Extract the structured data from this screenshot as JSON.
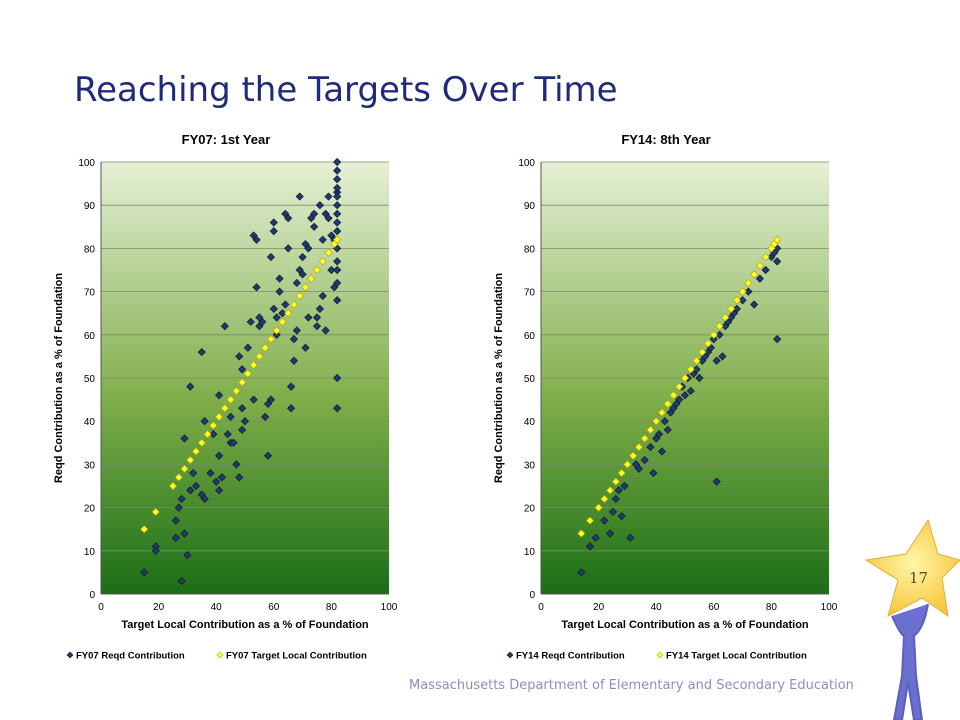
{
  "slide": {
    "title": "Reaching the Targets Over Time",
    "footer": "Massachusetts Department of Elementary and Secondary Education",
    "page_number": "17"
  },
  "colors": {
    "title": "#1f2b7a",
    "reqd_marker": "#1f3a6b",
    "target_marker": "#ffff33",
    "plot_top": "#e6f0d6",
    "plot_bottom": "#1b6e16"
  },
  "chart_data": [
    {
      "type": "scatter",
      "title": "FY07: 1st Year",
      "xlabel": "Target Local Contribution as a % of Foundation",
      "ylabel": "Reqd Contribution as a % of Foundation",
      "xlim": [
        0,
        100
      ],
      "ylim": [
        0,
        100
      ],
      "xticks": [
        0,
        20,
        40,
        60,
        80,
        100
      ],
      "yticks": [
        0,
        10,
        20,
        30,
        40,
        50,
        60,
        70,
        80,
        90,
        100
      ],
      "grid": "horizontal",
      "legend_position": "bottom",
      "series": [
        {
          "name": "FY07 Reqd Contribution",
          "marker": "diamond",
          "color": "#1f3a6b",
          "points": [
            [
              15,
              5
            ],
            [
              19,
              11
            ],
            [
              19,
              10
            ],
            [
              26,
              13
            ],
            [
              28,
              3
            ],
            [
              29,
              14
            ],
            [
              30,
              9
            ],
            [
              26,
              17
            ],
            [
              27,
              20
            ],
            [
              28,
              22
            ],
            [
              31,
              24
            ],
            [
              29,
              36
            ],
            [
              31,
              48
            ],
            [
              33,
              25
            ],
            [
              32,
              28
            ],
            [
              35,
              23
            ],
            [
              36,
              22
            ],
            [
              36,
              40
            ],
            [
              35,
              56
            ],
            [
              38,
              28
            ],
            [
              40,
              26
            ],
            [
              39,
              37
            ],
            [
              41,
              24
            ],
            [
              41,
              32
            ],
            [
              42,
              27
            ],
            [
              43,
              62
            ],
            [
              41,
              46
            ],
            [
              44,
              37
            ],
            [
              45,
              41
            ],
            [
              45,
              35
            ],
            [
              46,
              35
            ],
            [
              47,
              30
            ],
            [
              48,
              27
            ],
            [
              49,
              43
            ],
            [
              49,
              38
            ],
            [
              50,
              40
            ],
            [
              49,
              52
            ],
            [
              48,
              55
            ],
            [
              51,
              57
            ],
            [
              52,
              63
            ],
            [
              53,
              45
            ],
            [
              53,
              83
            ],
            [
              54,
              82
            ],
            [
              54,
              71
            ],
            [
              55,
              62
            ],
            [
              55,
              64
            ],
            [
              56,
              63
            ],
            [
              57,
              41
            ],
            [
              58,
              32
            ],
            [
              58,
              44
            ],
            [
              59,
              45
            ],
            [
              59,
              78
            ],
            [
              60,
              86
            ],
            [
              60,
              84
            ],
            [
              60,
              66
            ],
            [
              61,
              60
            ],
            [
              61,
              64
            ],
            [
              62,
              70
            ],
            [
              62,
              73
            ],
            [
              63,
              65
            ],
            [
              64,
              67
            ],
            [
              64,
              88
            ],
            [
              65,
              87
            ],
            [
              65,
              80
            ],
            [
              66,
              43
            ],
            [
              66,
              48
            ],
            [
              67,
              54
            ],
            [
              67,
              59
            ],
            [
              68,
              61
            ],
            [
              68,
              72
            ],
            [
              69,
              75
            ],
            [
              69,
              92
            ],
            [
              70,
              78
            ],
            [
              70,
              74
            ],
            [
              71,
              81
            ],
            [
              71,
              57
            ],
            [
              72,
              64
            ],
            [
              72,
              80
            ],
            [
              73,
              87
            ],
            [
              74,
              85
            ],
            [
              74,
              88
            ],
            [
              75,
              62
            ],
            [
              75,
              64
            ],
            [
              76,
              66
            ],
            [
              76,
              90
            ],
            [
              77,
              82
            ],
            [
              77,
              69
            ],
            [
              78,
              61
            ],
            [
              78,
              88
            ],
            [
              79,
              87
            ],
            [
              79,
              92
            ],
            [
              80,
              75
            ],
            [
              80,
              83
            ],
            [
              81,
              71
            ],
            [
              81,
              82
            ],
            [
              82,
              93
            ],
            [
              82,
              50
            ],
            [
              82,
              43
            ],
            [
              82,
              68
            ],
            [
              82,
              72
            ],
            [
              82,
              75
            ],
            [
              82,
              77
            ],
            [
              82,
              80
            ],
            [
              82,
              84
            ],
            [
              82,
              86
            ],
            [
              82,
              88
            ],
            [
              82,
              90
            ],
            [
              82,
              92
            ],
            [
              82,
              94
            ],
            [
              82,
              96
            ],
            [
              82,
              98
            ],
            [
              82,
              100
            ]
          ]
        },
        {
          "name": "FY07 Target Local Contribution",
          "marker": "diamond",
          "color": "#ffff33",
          "points": [
            [
              15,
              15
            ],
            [
              19,
              19
            ],
            [
              25,
              25
            ],
            [
              27,
              27
            ],
            [
              29,
              29
            ],
            [
              31,
              31
            ],
            [
              33,
              33
            ],
            [
              35,
              35
            ],
            [
              37,
              37
            ],
            [
              39,
              39
            ],
            [
              41,
              41
            ],
            [
              43,
              43
            ],
            [
              45,
              45
            ],
            [
              47,
              47
            ],
            [
              49,
              49
            ],
            [
              51,
              51
            ],
            [
              53,
              53
            ],
            [
              55,
              55
            ],
            [
              57,
              57
            ],
            [
              59,
              59
            ],
            [
              61,
              61
            ],
            [
              63,
              63
            ],
            [
              65,
              65
            ],
            [
              67,
              67
            ],
            [
              69,
              69
            ],
            [
              71,
              71
            ],
            [
              73,
              73
            ],
            [
              75,
              75
            ],
            [
              77,
              77
            ],
            [
              79,
              79
            ],
            [
              81,
              81
            ],
            [
              82,
              82
            ]
          ]
        }
      ]
    },
    {
      "type": "scatter",
      "title": "FY14: 8th Year",
      "xlabel": "Target Local Contribution as a % of Foundation",
      "ylabel": "Reqd Contribution as a % of Foundation",
      "xlim": [
        0,
        100
      ],
      "ylim": [
        0,
        100
      ],
      "xticks": [
        0,
        20,
        40,
        60,
        80,
        100
      ],
      "yticks": [
        0,
        10,
        20,
        30,
        40,
        50,
        60,
        70,
        80,
        90,
        100
      ],
      "grid": "horizontal",
      "legend_position": "bottom",
      "series": [
        {
          "name": "FY14 Reqd Contribution",
          "marker": "diamond",
          "color": "#1f3a6b",
          "points": [
            [
              14,
              5
            ],
            [
              17,
              11
            ],
            [
              19,
              13
            ],
            [
              22,
              17
            ],
            [
              24,
              14
            ],
            [
              25,
              19
            ],
            [
              26,
              22
            ],
            [
              27,
              24
            ],
            [
              28,
              18
            ],
            [
              29,
              25
            ],
            [
              31,
              13
            ],
            [
              33,
              30
            ],
            [
              34,
              29
            ],
            [
              36,
              31
            ],
            [
              38,
              34
            ],
            [
              39,
              28
            ],
            [
              40,
              36
            ],
            [
              41,
              37
            ],
            [
              42,
              33
            ],
            [
              43,
              40
            ],
            [
              44,
              38
            ],
            [
              45,
              42
            ],
            [
              46,
              43
            ],
            [
              47,
              44
            ],
            [
              48,
              45
            ],
            [
              49,
              48
            ],
            [
              50,
              46
            ],
            [
              51,
              50
            ],
            [
              52,
              47
            ],
            [
              53,
              51
            ],
            [
              54,
              52
            ],
            [
              55,
              50
            ],
            [
              56,
              54
            ],
            [
              57,
              55
            ],
            [
              58,
              56
            ],
            [
              59,
              57
            ],
            [
              60,
              59
            ],
            [
              61,
              26
            ],
            [
              61,
              54
            ],
            [
              62,
              60
            ],
            [
              63,
              55
            ],
            [
              64,
              62
            ],
            [
              65,
              63
            ],
            [
              66,
              64
            ],
            [
              67,
              65
            ],
            [
              68,
              66
            ],
            [
              70,
              68
            ],
            [
              72,
              70
            ],
            [
              74,
              67
            ],
            [
              76,
              73
            ],
            [
              78,
              75
            ],
            [
              80,
              78
            ],
            [
              81,
              79
            ],
            [
              82,
              77
            ],
            [
              82,
              59
            ],
            [
              82,
              80
            ]
          ]
        },
        {
          "name": "FY14 Target Local Contribution",
          "marker": "diamond",
          "color": "#ffff33",
          "points": [
            [
              14,
              14
            ],
            [
              17,
              17
            ],
            [
              20,
              20
            ],
            [
              22,
              22
            ],
            [
              24,
              24
            ],
            [
              26,
              26
            ],
            [
              28,
              28
            ],
            [
              30,
              30
            ],
            [
              32,
              32
            ],
            [
              34,
              34
            ],
            [
              36,
              36
            ],
            [
              38,
              38
            ],
            [
              40,
              40
            ],
            [
              42,
              42
            ],
            [
              44,
              44
            ],
            [
              46,
              46
            ],
            [
              48,
              48
            ],
            [
              50,
              50
            ],
            [
              52,
              52
            ],
            [
              54,
              54
            ],
            [
              56,
              56
            ],
            [
              58,
              58
            ],
            [
              60,
              60
            ],
            [
              62,
              62
            ],
            [
              64,
              64
            ],
            [
              66,
              66
            ],
            [
              68,
              68
            ],
            [
              70,
              70
            ],
            [
              72,
              72
            ],
            [
              74,
              74
            ],
            [
              76,
              76
            ],
            [
              78,
              78
            ],
            [
              80,
              80
            ],
            [
              81,
              81
            ],
            [
              82,
              82
            ]
          ]
        }
      ]
    }
  ]
}
